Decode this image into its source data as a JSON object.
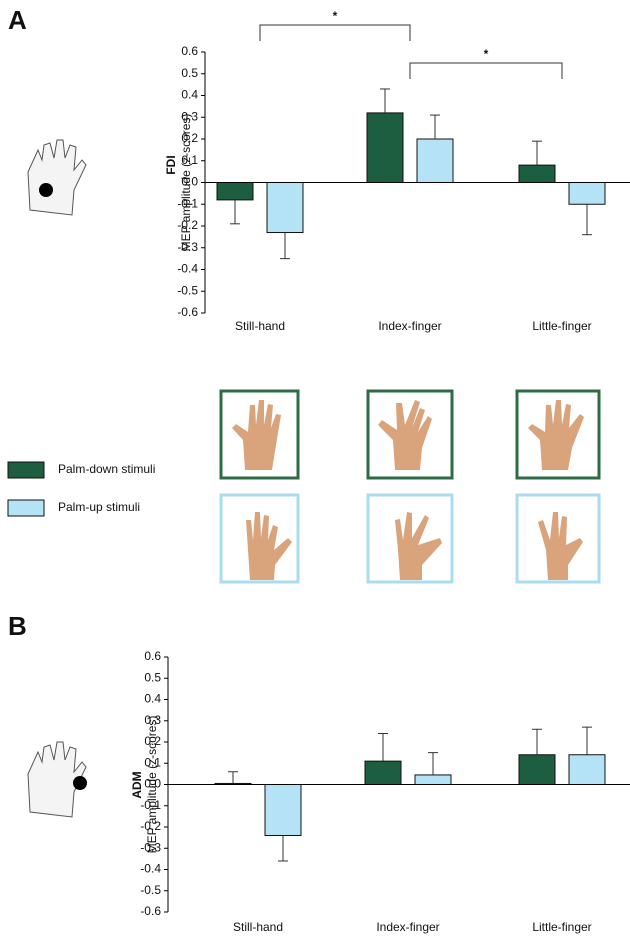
{
  "chart_data": [
    {
      "type": "bar",
      "panel": "A",
      "muscle": "FDI",
      "ylabel": "MEP amplitude (z-scores)",
      "categories": [
        "Still-hand",
        "Index-finger",
        "Little-finger"
      ],
      "series": [
        {
          "name": "Palm-down stimuli",
          "color": "#1d5e40",
          "values": [
            -0.08,
            0.32,
            0.08
          ],
          "errors": [
            0.11,
            0.11,
            0.11
          ]
        },
        {
          "name": "Palm-up stimuli",
          "color": "#b3e3f5",
          "values": [
            -0.23,
            0.2,
            -0.1
          ],
          "errors": [
            0.12,
            0.11,
            0.14
          ]
        }
      ],
      "ylim": [
        -0.6,
        0.6
      ],
      "yticks": [
        0.6,
        0.5,
        0.4,
        0.3,
        0.2,
        0.1,
        {
          "value": 0,
          "label": "0.0"
        },
        -0.1,
        -0.2,
        -0.3,
        -0.4,
        -0.5,
        -0.6
      ],
      "annotations": [
        "*",
        "*"
      ]
    },
    {
      "type": "bar",
      "panel": "B",
      "muscle": "ADM",
      "ylabel": "MEP amplitude (z-scores)",
      "categories": [
        "Still-hand",
        "Index-finger",
        "Little-finger"
      ],
      "series": [
        {
          "color": "#1d5e40",
          "values": [
            0.005,
            0.11,
            0.14
          ],
          "errors": [
            0.055,
            0.13,
            0.12
          ]
        },
        {
          "color": "#b3e3f5",
          "values": [
            -0.24,
            0.045,
            0.14
          ],
          "errors": [
            0.12,
            0.105,
            0.13
          ]
        }
      ],
      "ylim": [
        -0.6,
        0.6
      ],
      "yticks": [
        0.6,
        0.5,
        0.4,
        0.3,
        0.2,
        0.1,
        {
          "value": 0,
          "label": "0.0"
        },
        -0.1,
        -0.2,
        -0.3,
        -0.4,
        -0.5,
        -0.6
      ]
    }
  ]
}
